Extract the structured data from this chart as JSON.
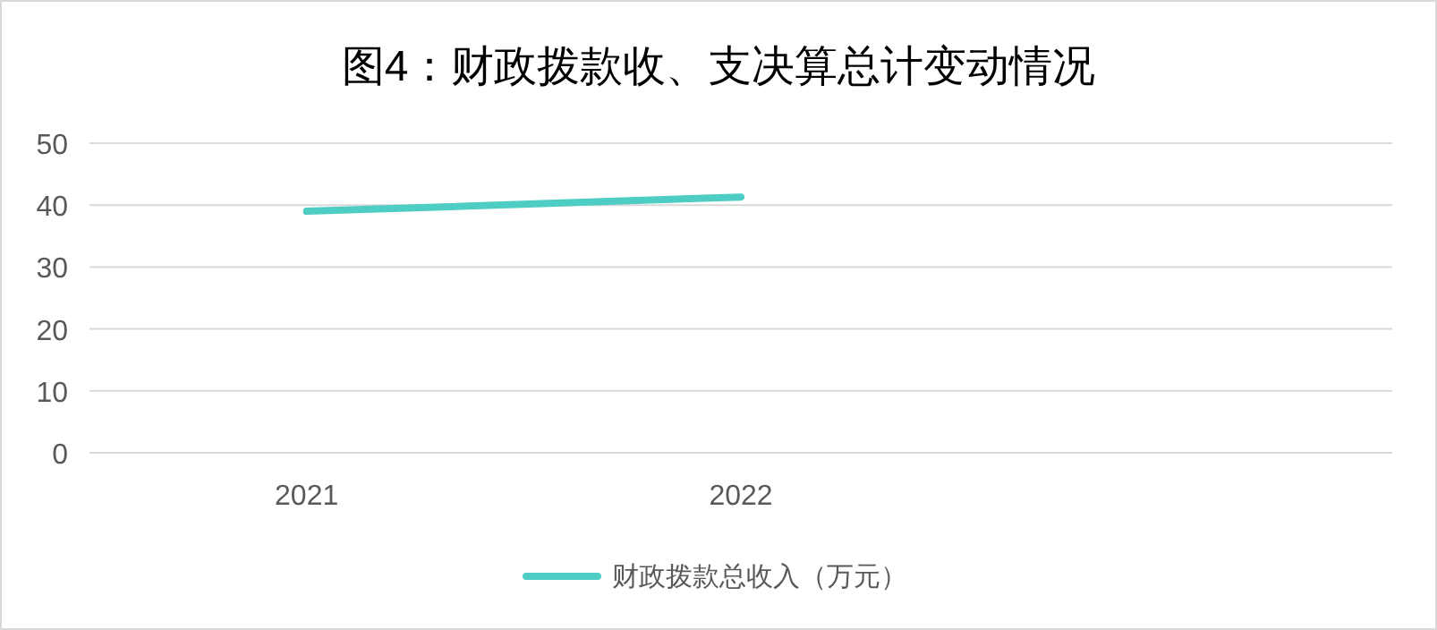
{
  "chart_data": {
    "type": "line",
    "title": "图4：财政拨款收、支决算总计变动情况",
    "categories": [
      "2021",
      "2022",
      null
    ],
    "series": [
      {
        "name": "财政拨款总收入（万元）",
        "color": "#4ecdc4",
        "values": [
          39,
          41.3,
          null
        ]
      }
    ],
    "ylim": [
      0,
      50
    ],
    "yticks": [
      0,
      10,
      20,
      30,
      40,
      50
    ],
    "grid": "y",
    "legend": "bottom",
    "marker": "none",
    "line_style": "solid"
  }
}
